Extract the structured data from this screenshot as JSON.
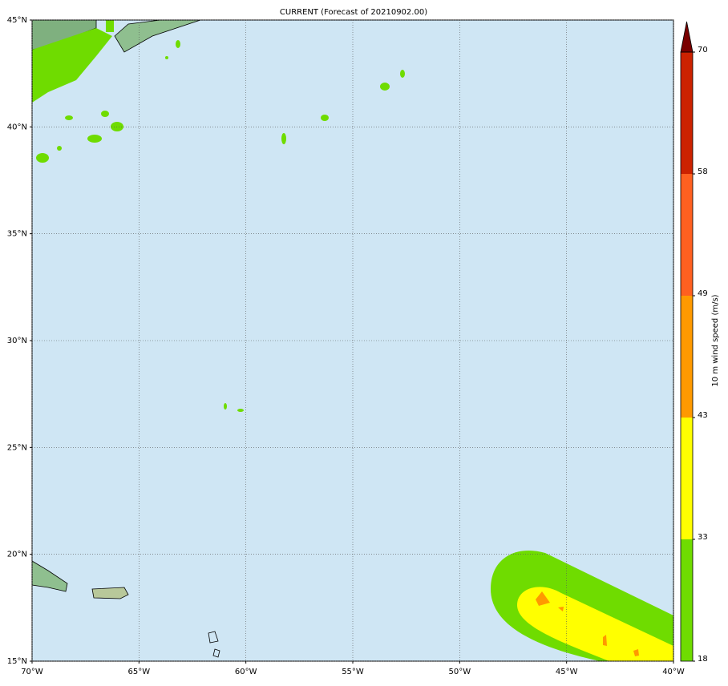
{
  "map": {
    "title": "CURRENT (Forecast of 20210902.00)",
    "lonlim": [
      -70,
      -40
    ],
    "latlim": [
      15,
      45
    ],
    "lon_ticks": [
      {
        "value": -70,
        "label": "70°W"
      },
      {
        "value": -65,
        "label": "65°W"
      },
      {
        "value": -60,
        "label": "60°W"
      },
      {
        "value": -55,
        "label": "55°W"
      },
      {
        "value": -50,
        "label": "50°W"
      },
      {
        "value": -45,
        "label": "45°W"
      },
      {
        "value": -40,
        "label": "40°W"
      }
    ],
    "lat_ticks": [
      {
        "value": 15,
        "label": "15°N"
      },
      {
        "value": 20,
        "label": "20°N"
      },
      {
        "value": 25,
        "label": "25°N"
      },
      {
        "value": 30,
        "label": "30°N"
      },
      {
        "value": 35,
        "label": "35°N"
      },
      {
        "value": 40,
        "label": "40°N"
      },
      {
        "value": 45,
        "label": "45°N"
      }
    ],
    "grid": true
  },
  "colorbar": {
    "label": "10 m wind speed (m/s)",
    "ticks": [
      18,
      33,
      43,
      49,
      58,
      70
    ],
    "colors": [
      "#6fdc00",
      "#ffff00",
      "#ff9900",
      "#ff6020",
      "#cc2200"
    ],
    "extend_color": "#7a0000"
  }
}
